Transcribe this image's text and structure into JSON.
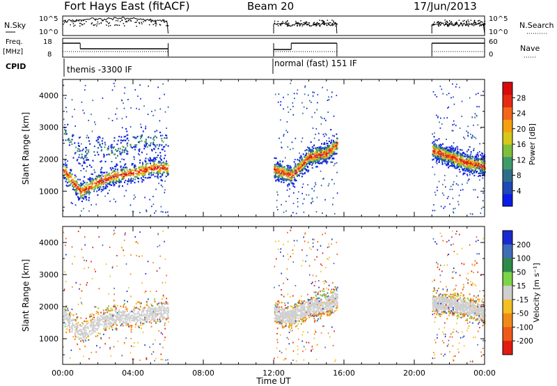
{
  "header": {
    "title": "Fort Hays East (fitACF)",
    "beam": "Beam 20",
    "date": "17/Jun/2013"
  },
  "top_panels": {
    "nsky_label": "N.Sky",
    "nsky_ticks": [
      "10^5",
      "10^0"
    ],
    "nsearch_label": "N.Search",
    "nsearch_ticks": [
      "10^5",
      "10^0"
    ],
    "freq_label_1": "Freq.",
    "freq_label_2": "[MHz]",
    "freq_ticks": [
      "18",
      "8"
    ],
    "nave_label": "Nave",
    "nave_ticks": [
      "60",
      "0"
    ],
    "cpid_label": "CPID",
    "cpid_entries": [
      {
        "start_hour": 0.0,
        "text": "themis -3300 IF"
      },
      {
        "start_hour": 12.0,
        "text": "normal (fast) 151 IF"
      }
    ]
  },
  "chart_data": [
    {
      "type": "heatmap",
      "name": "power",
      "xlabel": "",
      "ylabel": "Slant Range [km]",
      "xlim": [
        0,
        24
      ],
      "ylim": [
        200,
        4500
      ],
      "yticks": [
        "1000",
        "2000",
        "3000",
        "4000"
      ],
      "colorbar_label": "Power [dB]",
      "colorbar_ticks": [
        "4",
        "8",
        "12",
        "16",
        "20",
        "24",
        "28"
      ],
      "colorbar_colors": [
        "#0a1ce8",
        "#1f48b8",
        "#2f6e8a",
        "#3f9a6a",
        "#7ec03c",
        "#d6c81a",
        "#f6a010",
        "#f4661a",
        "#e62a14",
        "#d80c0c"
      ],
      "data_windows_ut": [
        [
          0.0,
          6.0
        ],
        [
          12.0,
          15.6
        ],
        [
          21.0,
          24.0
        ]
      ],
      "echo_bands": [
        {
          "window": 0,
          "description": "main band",
          "x_hours": [
            0.0,
            1.0,
            2.0,
            3.0,
            4.0,
            5.0,
            6.0
          ],
          "center_range_km": [
            1700,
            1000,
            1300,
            1500,
            1600,
            1750,
            1750
          ],
          "max_power_db": 28
        },
        {
          "window": 0,
          "description": "upper band",
          "x_hours": [
            0.0,
            1.0,
            2.0,
            3.0,
            4.0
          ],
          "center_range_km": [
            2900,
            2100,
            2400,
            2200,
            2600
          ],
          "max_power_db": 12
        },
        {
          "window": 1,
          "description": "main band",
          "x_hours": [
            12.0,
            13.0,
            14.0,
            15.0,
            15.6
          ],
          "center_range_km": [
            1700,
            1500,
            2100,
            2200,
            2500
          ],
          "max_power_db": 28
        },
        {
          "window": 2,
          "description": "main band",
          "x_hours": [
            21.0,
            22.0,
            23.0,
            24.0
          ],
          "center_range_km": [
            2300,
            2100,
            1900,
            1800
          ],
          "max_power_db": 28
        }
      ]
    },
    {
      "type": "heatmap",
      "name": "velocity",
      "xlabel": "Time UT",
      "ylabel": "Slant Range [km]",
      "xlim": [
        0,
        24
      ],
      "ylim": [
        200,
        4500
      ],
      "xticks": [
        "00:00",
        "04:00",
        "08:00",
        "12:00",
        "16:00",
        "20:00",
        "00:00"
      ],
      "yticks": [
        "1000",
        "2000",
        "3000",
        "4000"
      ],
      "colorbar_label": "Velocity [m s⁻¹]",
      "colorbar_ticks": [
        "200",
        "100",
        "50",
        "15",
        "-15",
        "-50",
        "-100",
        "-200"
      ],
      "colorbar_colors": [
        "#1a2ad0",
        "#3f6cb8",
        "#2e8a48",
        "#7cd448",
        "#cfcfcf",
        "#f3bf22",
        "#f18a18",
        "#ee5a18",
        "#e21a10"
      ],
      "data_windows_ut": [
        [
          0.0,
          6.0
        ],
        [
          12.0,
          15.6
        ],
        [
          21.0,
          24.0
        ]
      ],
      "echo_bands": [
        {
          "window": 0,
          "description": "ground scatter band",
          "x_hours": [
            0.0,
            1.0,
            2.0,
            3.0,
            4.0,
            5.0,
            6.0
          ],
          "center_range_km": [
            1700,
            1200,
            1500,
            1700,
            1700,
            1800,
            1900
          ],
          "velocity_ms": 0
        },
        {
          "window": 1,
          "description": "ground scatter band",
          "x_hours": [
            12.0,
            13.0,
            14.0,
            15.0,
            15.6
          ],
          "center_range_km": [
            1800,
            1700,
            2000,
            2100,
            2300
          ],
          "velocity_ms": 0
        },
        {
          "window": 2,
          "description": "ground scatter band",
          "x_hours": [
            21.0,
            22.0,
            23.0,
            24.0
          ],
          "center_range_km": [
            2100,
            2100,
            2000,
            1800
          ],
          "velocity_ms": 0
        }
      ]
    }
  ]
}
